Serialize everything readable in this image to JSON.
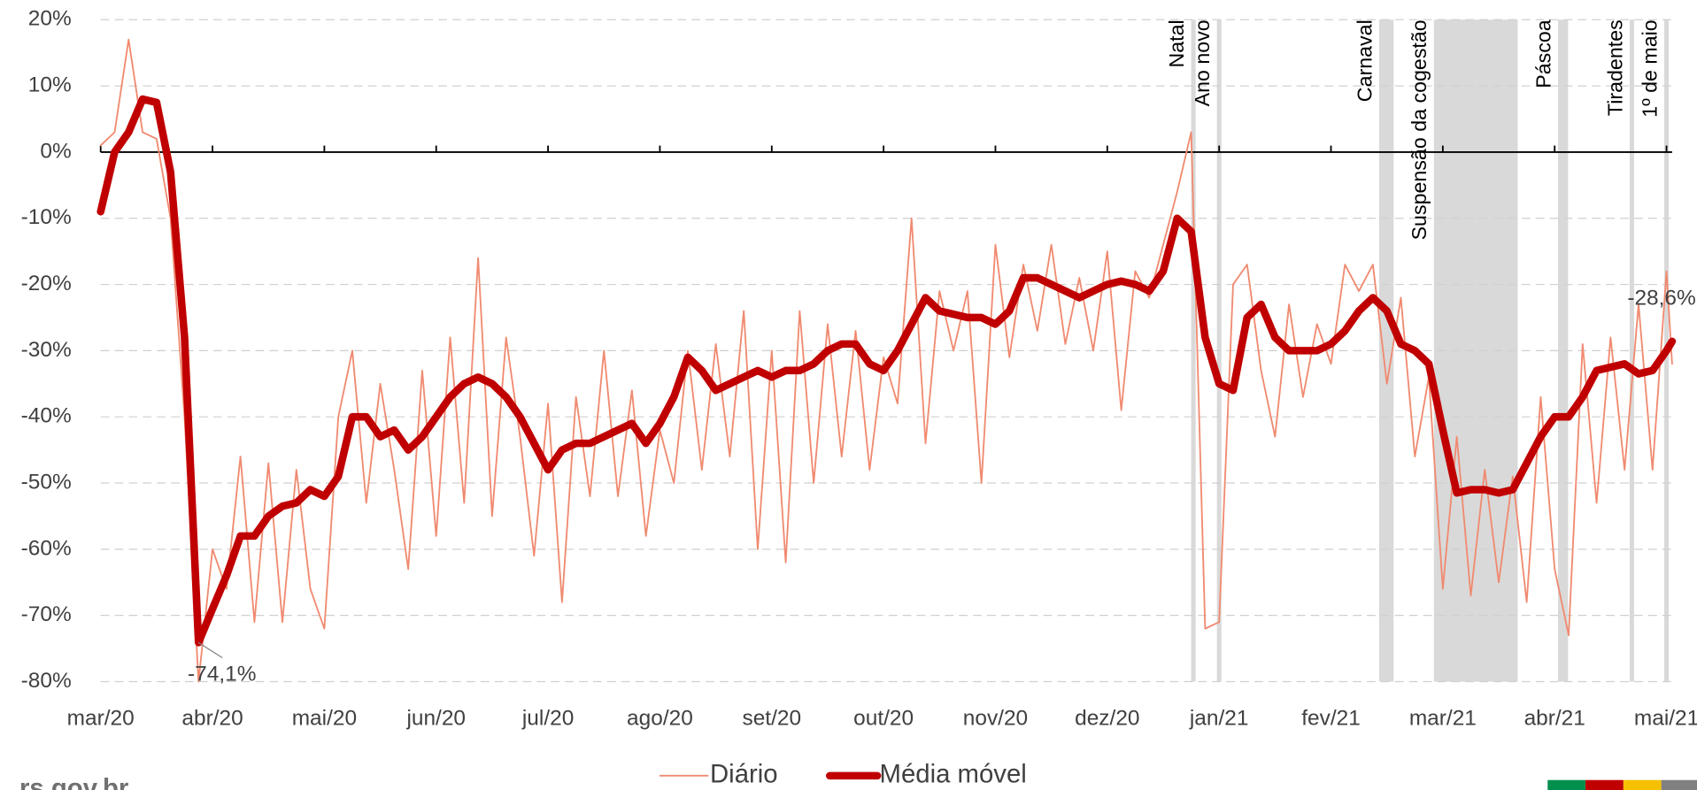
{
  "chart_data": {
    "type": "line",
    "x": [
      0,
      0.125,
      0.25,
      0.375,
      0.5,
      0.625,
      0.75,
      0.875,
      1,
      1.125,
      1.25,
      1.375,
      1.5,
      1.625,
      1.75,
      1.875,
      2,
      2.125,
      2.25,
      2.375,
      2.5,
      2.625,
      2.75,
      2.875,
      3,
      3.125,
      3.25,
      3.375,
      3.5,
      3.625,
      3.75,
      3.875,
      4,
      4.125,
      4.25,
      4.375,
      4.5,
      4.625,
      4.75,
      4.875,
      5,
      5.125,
      5.25,
      5.375,
      5.5,
      5.625,
      5.75,
      5.875,
      6,
      6.125,
      6.25,
      6.375,
      6.5,
      6.625,
      6.75,
      6.875,
      7,
      7.125,
      7.25,
      7.375,
      7.5,
      7.625,
      7.75,
      7.875,
      8,
      8.125,
      8.25,
      8.375,
      8.5,
      8.625,
      8.75,
      8.875,
      9,
      9.125,
      9.25,
      9.375,
      9.5,
      9.625,
      9.75,
      9.875,
      10,
      10.125,
      10.25,
      10.375,
      10.5,
      10.625,
      10.75,
      10.875,
      11,
      11.125,
      11.25,
      11.375,
      11.5,
      11.625,
      11.75,
      11.875,
      12,
      12.125,
      12.25,
      12.375,
      12.5,
      12.625,
      12.75,
      12.875,
      13,
      13.125,
      13.25,
      13.375,
      13.5,
      13.625,
      13.75,
      13.875,
      14,
      14.05
    ],
    "series": [
      {
        "name": "Diário",
        "color": "#f08a70",
        "width": 1.5,
        "values": [
          1,
          3,
          17,
          3,
          2,
          -10,
          -40,
          -80,
          -60,
          -66,
          -46,
          -71,
          -47,
          -71,
          -48,
          -66,
          -72,
          -40,
          -30,
          -53,
          -35,
          -48,
          -63,
          -33,
          -58,
          -28,
          -53,
          -16,
          -55,
          -28,
          -43,
          -61,
          -38,
          -68,
          -37,
          -52,
          -30,
          -52,
          -36,
          -58,
          -42,
          -50,
          -30,
          -48,
          -29,
          -46,
          -24,
          -60,
          -30,
          -62,
          -24,
          -50,
          -26,
          -46,
          -27,
          -48,
          -31,
          -38,
          -10,
          -44,
          -21,
          -30,
          -21,
          -50,
          -14,
          -31,
          -17,
          -27,
          -14,
          -29,
          -19,
          -30,
          -15,
          -39,
          -18,
          -22,
          -14,
          -6,
          3,
          -72,
          -71,
          -20,
          -17,
          -33,
          -43,
          -23,
          -37,
          -26,
          -32,
          -17,
          -21,
          -17,
          -35,
          -22,
          -46,
          -34,
          -66,
          -43,
          -67,
          -48,
          -65,
          -49,
          -68,
          -37,
          -63,
          -73,
          -29,
          -53,
          -28,
          -48,
          -23,
          -48,
          -18,
          -32
        ]
      },
      {
        "name": "Média móvel",
        "color": "#c00000",
        "width": 7,
        "values": [
          -9,
          0,
          3,
          8,
          7.5,
          -3,
          -28,
          -74.1,
          -69,
          -64,
          -58,
          -58,
          -55,
          -53.5,
          -53,
          -51,
          -52,
          -49,
          -40,
          -40,
          -43,
          -42,
          -45,
          -43,
          -40,
          -37,
          -35,
          -34,
          -35,
          -37,
          -40,
          -44,
          -48,
          -45,
          -44,
          -44,
          -43,
          -42,
          -41,
          -44,
          -41,
          -37,
          -31,
          -33,
          -36,
          -35,
          -34,
          -33,
          -34,
          -33,
          -33,
          -32,
          -30,
          -29,
          -29,
          -32,
          -33,
          -30,
          -26,
          -22,
          -24,
          -24.5,
          -25,
          -25,
          -26,
          -24,
          -19,
          -19,
          -20,
          -21,
          -22,
          -21,
          -20,
          -19.5,
          -20,
          -21,
          -18,
          -10,
          -12,
          -28,
          -35,
          -36,
          -25,
          -23,
          -28,
          -30,
          -30,
          -30,
          -29,
          -27,
          -24,
          -22,
          -24,
          -29,
          -30,
          -32,
          -42,
          -51.5,
          -51,
          -51,
          -51.5,
          -51,
          -47,
          -43,
          -40,
          -40,
          -37,
          -33,
          -32.5,
          -32,
          -33.5,
          -33,
          -30,
          -28.6
        ]
      }
    ],
    "xlim": [
      0,
      14.05
    ],
    "xticks": [
      {
        "value": 0,
        "label": "mar/20"
      },
      {
        "value": 1,
        "label": "abr/20"
      },
      {
        "value": 2,
        "label": "mai/20"
      },
      {
        "value": 3,
        "label": "jun/20"
      },
      {
        "value": 4,
        "label": "jul/20"
      },
      {
        "value": 5,
        "label": "ago/20"
      },
      {
        "value": 6,
        "label": "set/20"
      },
      {
        "value": 7,
        "label": "out/20"
      },
      {
        "value": 8,
        "label": "nov/20"
      },
      {
        "value": 9,
        "label": "dez/20"
      },
      {
        "value": 10,
        "label": "jan/21"
      },
      {
        "value": 11,
        "label": "fev/21"
      },
      {
        "value": 12,
        "label": "mar/21"
      },
      {
        "value": 13,
        "label": "abr/21"
      },
      {
        "value": 14,
        "label": "mai/21"
      }
    ],
    "ylim": [
      -80,
      20
    ],
    "yticks": [
      {
        "value": 20,
        "label": "20%"
      },
      {
        "value": 10,
        "label": "10%"
      },
      {
        "value": 0,
        "label": "0%"
      },
      {
        "value": -10,
        "label": "-10%"
      },
      {
        "value": -20,
        "label": "-20%"
      },
      {
        "value": -30,
        "label": "-30%"
      },
      {
        "value": -40,
        "label": "-40%"
      },
      {
        "value": -50,
        "label": "-50%"
      },
      {
        "value": -60,
        "label": "-60%"
      },
      {
        "value": -70,
        "label": "-70%"
      },
      {
        "value": -80,
        "label": "-80%"
      }
    ],
    "grid": true,
    "events": [
      {
        "label": "Natal",
        "x": [
          9.75,
          9.79
        ]
      },
      {
        "label": "Ano novo",
        "x": [
          9.98,
          10.02
        ]
      },
      {
        "label": "Carnaval",
        "x": [
          11.43,
          11.56
        ]
      },
      {
        "label": "Suspensão da cogestão",
        "x": [
          11.92,
          12.67
        ]
      },
      {
        "label": "Páscoa",
        "x": [
          13.03,
          13.12
        ]
      },
      {
        "label": "Tiradentes",
        "x": [
          13.67,
          13.71
        ]
      },
      {
        "label": "1º de maio",
        "x": [
          13.98,
          14.02
        ]
      }
    ],
    "annotations": [
      {
        "text": "-74,1%",
        "x": 0.875,
        "y": -74.1
      },
      {
        "text": "-28,6%",
        "x": 14.05,
        "y": -28.6
      }
    ],
    "source": "rs.gov.br"
  }
}
